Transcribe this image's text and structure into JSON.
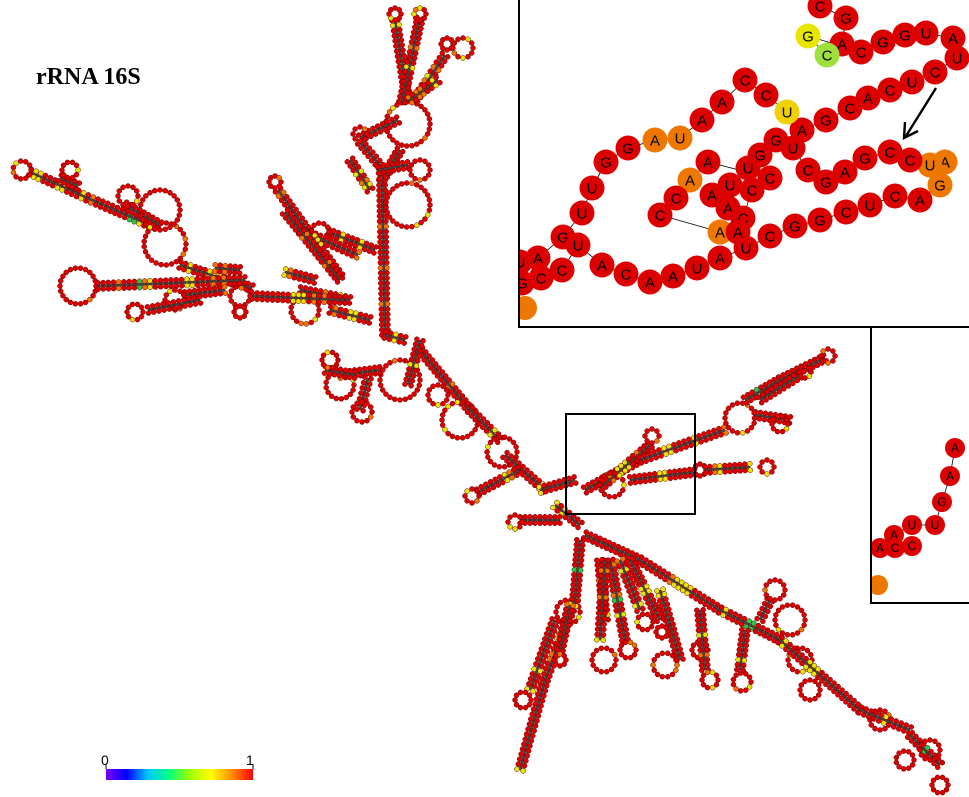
{
  "figure": {
    "title": "rRNA 16S",
    "colorbar": {
      "min_label": "0",
      "max_label": "1",
      "colors": [
        "#7a00ff",
        "#0000ff",
        "#00c8ff",
        "#00ff80",
        "#a0ff00",
        "#ffff00",
        "#ff8c00",
        "#ff0000"
      ]
    },
    "node_colors": {
      "high": "#dd0000",
      "mid": "#ee7700",
      "low_yellow": "#e6e600",
      "low_green": "#22cc44",
      "outline": "#660000"
    },
    "inset_large": {
      "nucleotides": [
        {
          "b": "C"
        },
        {
          "b": "G"
        },
        {
          "b": "A"
        },
        {
          "b": "C"
        },
        {
          "b": "G"
        },
        {
          "b": "C"
        },
        {
          "b": "G"
        },
        {
          "b": "G"
        },
        {
          "b": "U"
        },
        {
          "b": "A"
        },
        {
          "b": "U"
        },
        {
          "b": "C"
        },
        {
          "b": "U"
        },
        {
          "b": "C"
        },
        {
          "b": "A"
        },
        {
          "b": "C"
        },
        {
          "b": "G"
        },
        {
          "b": "A"
        },
        {
          "b": "U"
        },
        {
          "b": "C"
        },
        {
          "b": "C"
        },
        {
          "b": "A"
        },
        {
          "b": "A"
        },
        {
          "b": "U"
        },
        {
          "b": "A"
        },
        {
          "b": "G"
        },
        {
          "b": "G"
        },
        {
          "b": "U"
        },
        {
          "b": "U"
        },
        {
          "b": "G"
        },
        {
          "b": "A"
        },
        {
          "b": "U"
        },
        {
          "b": "G"
        },
        {
          "b": "C"
        },
        {
          "b": "C"
        },
        {
          "b": "U"
        },
        {
          "b": "A"
        },
        {
          "b": "C"
        },
        {
          "b": "A"
        },
        {
          "b": "A"
        },
        {
          "b": "U"
        },
        {
          "b": "A"
        },
        {
          "b": "U"
        },
        {
          "b": "C"
        },
        {
          "b": "G"
        },
        {
          "b": "G"
        },
        {
          "b": "C"
        },
        {
          "b": "U"
        },
        {
          "b": "C"
        },
        {
          "b": "A"
        },
        {
          "b": "G"
        },
        {
          "b": "A"
        },
        {
          "b": "U"
        },
        {
          "b": "C"
        },
        {
          "b": "C"
        },
        {
          "b": "G"
        },
        {
          "b": "A"
        },
        {
          "b": "G"
        },
        {
          "b": "C"
        },
        {
          "b": "U"
        },
        {
          "b": "G"
        },
        {
          "b": "G"
        },
        {
          "b": "U"
        },
        {
          "b": "U"
        },
        {
          "b": "A"
        },
        {
          "b": "A"
        },
        {
          "b": "C"
        },
        {
          "b": "C"
        },
        {
          "b": "C"
        },
        {
          "b": "A"
        },
        {
          "b": "A"
        },
        {
          "b": "C"
        },
        {
          "b": "C"
        },
        {
          "b": "A"
        },
        {
          "b": "A"
        }
      ]
    },
    "inset_small": {
      "nucleotides": [
        {
          "b": "A"
        },
        {
          "b": "A"
        },
        {
          "b": "G"
        },
        {
          "b": "U"
        },
        {
          "b": "U"
        },
        {
          "b": "A"
        },
        {
          "b": "A"
        },
        {
          "b": "C"
        },
        {
          "b": "C"
        }
      ]
    }
  }
}
